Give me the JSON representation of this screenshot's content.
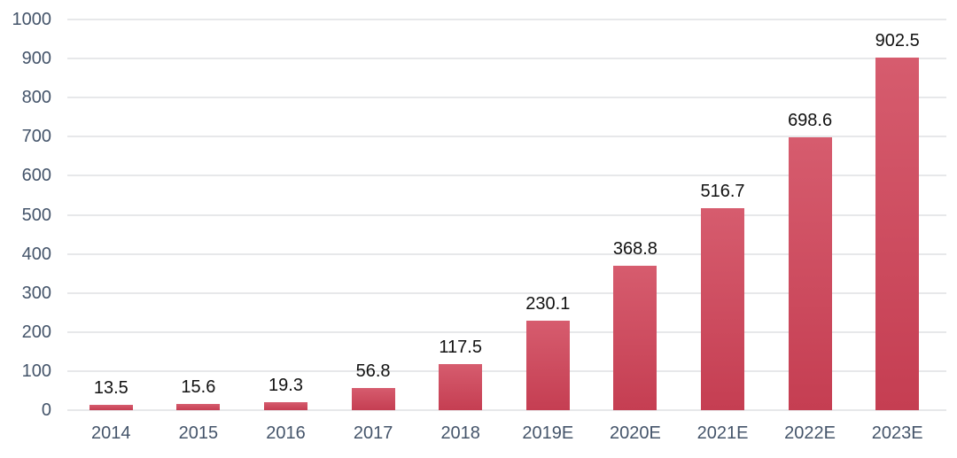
{
  "chart_data": {
    "type": "bar",
    "title": "",
    "xlabel": "",
    "ylabel": "",
    "categories": [
      "2014",
      "2015",
      "2016",
      "2017",
      "2018",
      "2019E",
      "2020E",
      "2021E",
      "2022E",
      "2023E"
    ],
    "values": [
      13.5,
      15.6,
      19.3,
      56.8,
      117.5,
      230.1,
      368.8,
      516.7,
      698.6,
      902.5
    ],
    "data_labels": [
      "13.5",
      "15.6",
      "19.3",
      "56.8",
      "117.5",
      "230.1",
      "368.8",
      "516.7",
      "698.6",
      "902.5"
    ],
    "ylim": [
      0,
      1000
    ],
    "ytick_interval": 100,
    "ytick_labels": [
      "0",
      "100",
      "200",
      "300",
      "400",
      "500",
      "600",
      "700",
      "800",
      "900",
      "1000"
    ],
    "grid": true,
    "legend": false,
    "colors": {
      "bar_gradient_top": "#D65C6E",
      "bar_gradient_bottom": "#C53E52",
      "axis_label": "#44546A",
      "data_label": "#111111",
      "gridline": "#E7E8EA",
      "background": "#FFFFFF"
    }
  }
}
